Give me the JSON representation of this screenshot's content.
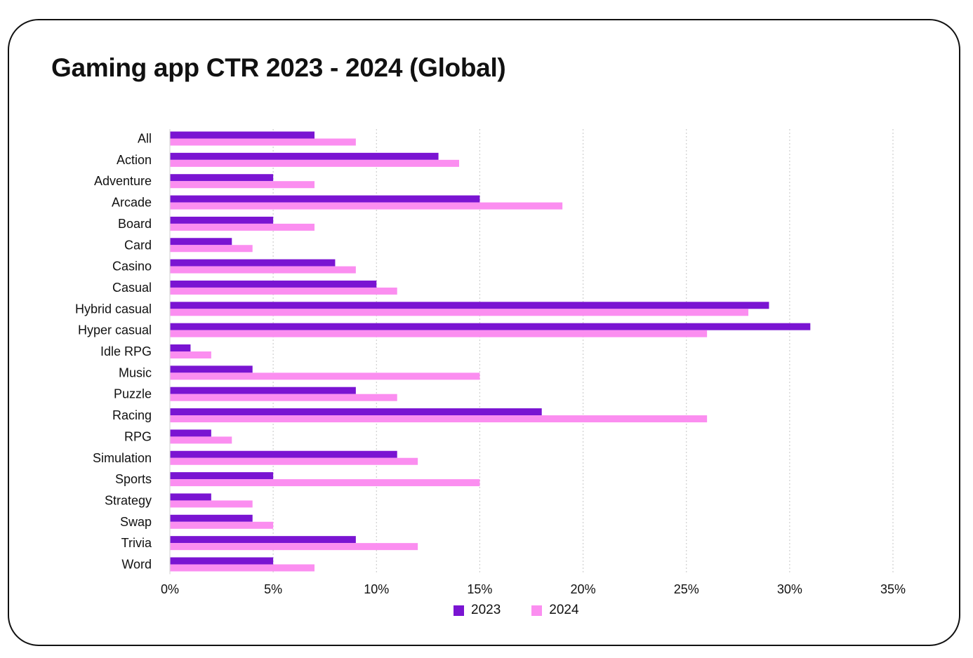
{
  "title": "Gaming app CTR 2023 - 2024 (Global)",
  "chart_data": {
    "type": "bar",
    "orientation": "horizontal",
    "title": "Gaming app CTR 2023 - 2024 (Global)",
    "categories": [
      "All",
      "Action",
      "Adventure",
      "Arcade",
      "Board",
      "Card",
      "Casino",
      "Casual",
      "Hybrid casual",
      "Hyper casual",
      "Idle RPG",
      "Music",
      "Puzzle",
      "Racing",
      "RPG",
      "Simulation",
      "Sports",
      "Strategy",
      "Swap",
      "Trivia",
      "Word"
    ],
    "series": [
      {
        "name": "2023",
        "color": "#7a14d2",
        "values": [
          7,
          13,
          5,
          15,
          5,
          3,
          8,
          10,
          29,
          31,
          1,
          4,
          9,
          18,
          2,
          11,
          5,
          2,
          4,
          9,
          5
        ]
      },
      {
        "name": "2024",
        "color": "#fb8ef0",
        "values": [
          9,
          14,
          7,
          19,
          7,
          4,
          9,
          11,
          28,
          26,
          2,
          15,
          11,
          26,
          3,
          12,
          15,
          4,
          5,
          12,
          7
        ]
      }
    ],
    "xlim": [
      0,
      35
    ],
    "x_ticks": [
      0,
      5,
      10,
      15,
      20,
      25,
      30,
      35
    ],
    "x_tick_labels": [
      "0%",
      "5%",
      "10%",
      "15%",
      "20%",
      "25%",
      "30%",
      "35%"
    ],
    "grid": "vertical dotted",
    "legend_position": "bottom-center"
  }
}
